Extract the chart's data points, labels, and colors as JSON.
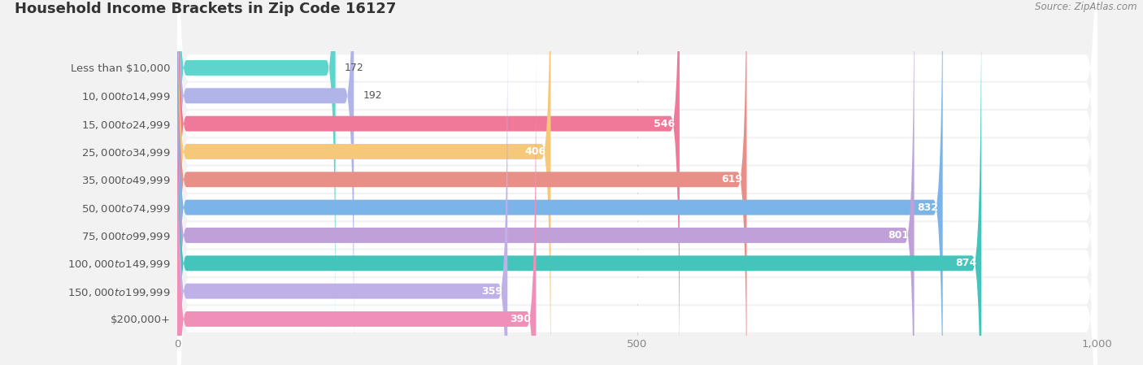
{
  "title": "Household Income Brackets in Zip Code 16127",
  "source": "Source: ZipAtlas.com",
  "categories": [
    "Less than $10,000",
    "$10,000 to $14,999",
    "$15,000 to $24,999",
    "$25,000 to $34,999",
    "$35,000 to $49,999",
    "$50,000 to $74,999",
    "$75,000 to $99,999",
    "$100,000 to $149,999",
    "$150,000 to $199,999",
    "$200,000+"
  ],
  "values": [
    172,
    192,
    546,
    406,
    619,
    832,
    801,
    874,
    359,
    390
  ],
  "bar_colors": [
    "#5DD4CC",
    "#B0B4E8",
    "#F07898",
    "#F5C87A",
    "#E89088",
    "#7AB4E8",
    "#C0A0D8",
    "#45C4BC",
    "#C0B0E8",
    "#F090B8"
  ],
  "xlim_data": [
    0,
    1000
  ],
  "xticks": [
    0,
    500,
    1000
  ],
  "xtick_labels": [
    "0",
    "500",
    "1,000"
  ],
  "background_color": "#f2f2f2",
  "row_bg_color": "#ffffff",
  "title_fontsize": 13,
  "label_fontsize": 9.5,
  "value_fontsize": 9,
  "source_fontsize": 8.5,
  "bar_height": 0.55,
  "value_threshold": 250
}
